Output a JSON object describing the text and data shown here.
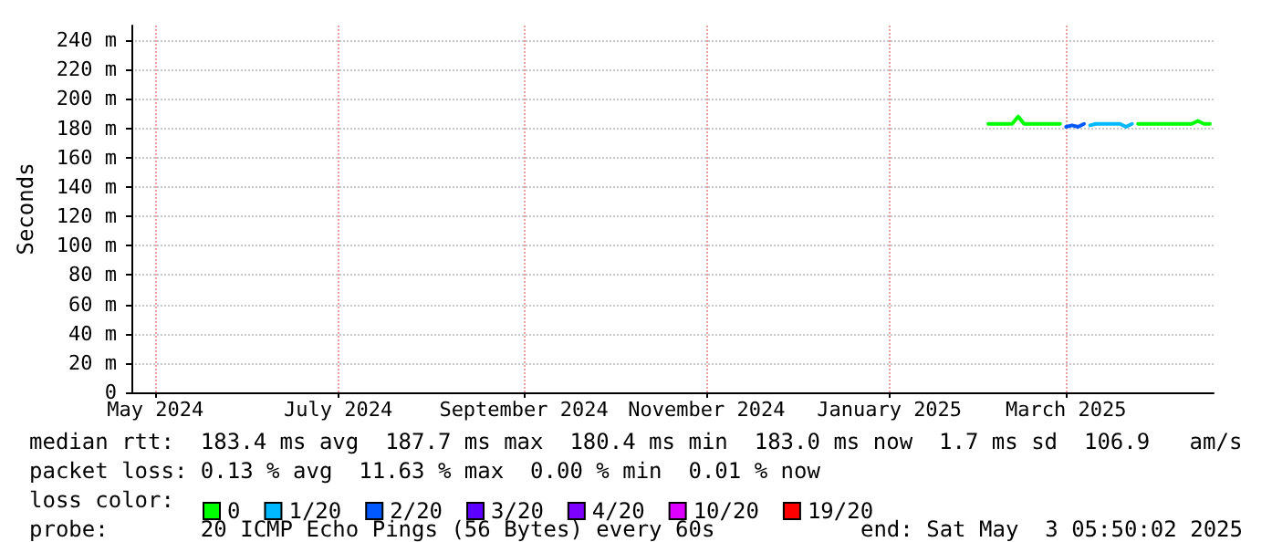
{
  "chart_data": {
    "type": "line",
    "ylabel": "Seconds",
    "legend_title": "loss color:",
    "legend": "bottom left",
    "grid": true,
    "marker": "none",
    "line_style": "solid",
    "x": [
      "2025-02-17",
      "2025-02-19",
      "2025-02-21",
      "2025-02-23",
      "2025-02-25",
      "2025-02-27",
      "2025-03-01",
      "2025-03-03",
      "2025-03-05",
      "2025-03-07",
      "2025-03-09",
      "2025-03-11",
      "2025-03-13",
      "2025-03-15",
      "2025-03-17",
      "2025-03-19",
      "2025-03-21",
      "2025-03-23",
      "2025-03-25",
      "2025-03-27",
      "2025-03-29",
      "2025-03-31",
      "2025-04-02",
      "2025-04-04",
      "2025-04-06",
      "2025-04-08",
      "2025-04-10",
      "2025-04-12",
      "2025-04-14",
      "2025-04-16",
      "2025-04-18",
      "2025-04-20",
      "2025-04-22",
      "2025-04-24",
      "2025-04-26",
      "2025-04-28",
      "2025-04-30",
      "2025-05-02"
    ],
    "series": [
      {
        "name": "0",
        "color": "#00ff00",
        "values": [
          183,
          183,
          183,
          183,
          183,
          188,
          183,
          183,
          183,
          183,
          183,
          183,
          183,
          null,
          null,
          null,
          null,
          null,
          null,
          null,
          null,
          null,
          null,
          null,
          null,
          183,
          183,
          183,
          183,
          183,
          183,
          183,
          183,
          183,
          183,
          185,
          183,
          183
        ]
      },
      {
        "name": "1/20",
        "color": "#00b8ff",
        "values": [
          null,
          null,
          null,
          null,
          null,
          null,
          null,
          null,
          null,
          null,
          null,
          null,
          null,
          null,
          null,
          null,
          null,
          182,
          183,
          183,
          183,
          183,
          183,
          181,
          183,
          null,
          null,
          null,
          null,
          null,
          null,
          null,
          null,
          null,
          null,
          null,
          null,
          null
        ]
      },
      {
        "name": "2/20",
        "color": "#0059ff",
        "values": [
          null,
          null,
          null,
          null,
          null,
          null,
          null,
          null,
          null,
          null,
          null,
          null,
          null,
          181,
          182,
          181,
          183,
          null,
          null,
          null,
          null,
          null,
          null,
          null,
          null,
          null,
          null,
          null,
          null,
          null,
          null,
          null,
          null,
          null,
          null,
          null,
          null,
          null
        ]
      },
      {
        "name": "3/20",
        "color": "#5e00ff",
        "values": [
          null,
          null,
          null,
          null,
          null,
          null,
          null,
          null,
          null,
          null,
          null,
          null,
          null,
          null,
          null,
          null,
          null,
          null,
          null,
          null,
          null,
          null,
          null,
          null,
          null,
          null,
          null,
          null,
          null,
          null,
          null,
          null,
          null,
          null,
          null,
          null,
          null,
          null
        ]
      },
      {
        "name": "4/20",
        "color": "#7e00ff",
        "values": [
          null,
          null,
          null,
          null,
          null,
          null,
          null,
          null,
          null,
          null,
          null,
          null,
          null,
          null,
          null,
          null,
          null,
          null,
          null,
          null,
          null,
          null,
          null,
          null,
          null,
          null,
          null,
          null,
          null,
          null,
          null,
          null,
          null,
          null,
          null,
          null,
          null,
          null
        ]
      },
      {
        "name": "10/20",
        "color": "#dd00ff",
        "values": [
          null,
          null,
          null,
          null,
          null,
          null,
          null,
          null,
          null,
          null,
          null,
          null,
          null,
          null,
          null,
          null,
          null,
          null,
          null,
          null,
          null,
          null,
          null,
          null,
          null,
          null,
          null,
          null,
          null,
          null,
          null,
          null,
          null,
          null,
          null,
          null,
          null,
          null
        ]
      },
      {
        "name": "19/20",
        "color": "#ff0000",
        "values": [
          null,
          null,
          null,
          null,
          null,
          null,
          null,
          null,
          null,
          null,
          null,
          null,
          null,
          null,
          null,
          null,
          null,
          null,
          null,
          null,
          null,
          null,
          null,
          null,
          null,
          null,
          null,
          null,
          null,
          null,
          null,
          null,
          null,
          null,
          null,
          null,
          null,
          null
        ]
      }
    ],
    "xlim": [
      "2024-05-07",
      "2025-05-03T05:50"
    ],
    "xticks": [
      {
        "value": "2024-05-15",
        "label": "May 2024"
      },
      {
        "value": "2024-07-15",
        "label": "July 2024"
      },
      {
        "value": "2024-09-15",
        "label": "September 2024"
      },
      {
        "value": "2024-11-15",
        "label": "November 2024"
      },
      {
        "value": "2025-01-15",
        "label": "January 2025"
      },
      {
        "value": "2025-03-15",
        "label": "March 2025"
      }
    ],
    "ylim": [
      0,
      250
    ],
    "yticks": [
      0,
      {
        "value": 20,
        "label": "20 m"
      },
      {
        "value": 40,
        "label": "40 m"
      },
      {
        "value": 60,
        "label": "60 m"
      },
      {
        "value": 80,
        "label": "80 m"
      },
      {
        "value": 100,
        "label": "100 m"
      },
      {
        "value": 120,
        "label": "120 m"
      },
      {
        "value": 140,
        "label": "140 m"
      },
      {
        "value": 160,
        "label": "160 m"
      },
      {
        "value": 180,
        "label": "180 m"
      },
      {
        "value": 200,
        "label": "200 m"
      },
      {
        "value": 220,
        "label": "220 m"
      },
      {
        "value": 240,
        "label": "240 m"
      }
    ],
    "annotations": [
      "median rtt:  183.4 ms avg  187.7 ms max  180.4 ms min  183.0 ms now  1.7 ms sd  106.9   am/s",
      "packet loss: 0.13 % avg  11.63 % max  0.00 % min  0.01 % now",
      "probe:       20 ICMP Echo Pings (56 Bytes) every 60s",
      "end: Sat May  3 05:50:02 2025"
    ]
  }
}
